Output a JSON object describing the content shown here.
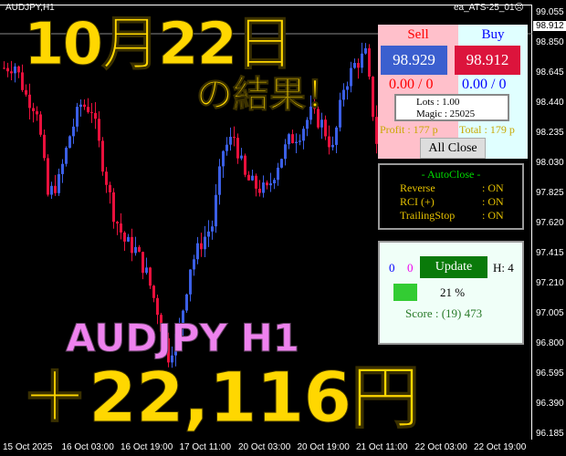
{
  "header": {
    "symbol": "AUDJPY,H1",
    "ea_name": "ea_ATS-25_01",
    "ea_status_icon": "frown-face-icon"
  },
  "price_axis": [
    "99.055",
    "98.850",
    "98.645",
    "98.440",
    "98.235",
    "98.030",
    "97.825",
    "97.620",
    "97.415",
    "97.210",
    "97.005",
    "96.800",
    "96.595",
    "96.390",
    "96.185"
  ],
  "current_price": "98.912",
  "time_axis": [
    "15 Oct 2025",
    "16 Oct 03:00",
    "16 Oct 19:00",
    "17 Oct 11:00",
    "20 Oct 03:00",
    "20 Oct 19:00",
    "21 Oct 11:00",
    "22 Oct 03:00",
    "22 Oct 19:00"
  ],
  "chart_data": {
    "type": "candlestick",
    "symbol": "AUDJPY",
    "timeframe": "H1",
    "ylim": [
      96.185,
      99.055
    ],
    "close_path": [
      98.68,
      98.7,
      98.49,
      98.4,
      97.81,
      97.91,
      98.22,
      98.43,
      98.4,
      98.03,
      97.69,
      97.5,
      97.44,
      97.28,
      97.03,
      96.72,
      96.9,
      97.33,
      97.49,
      97.61,
      98.12,
      98.21,
      97.93,
      97.87,
      97.84,
      98.03,
      98.18,
      98.24,
      98.37,
      98.3,
      98.12,
      98.55,
      98.7,
      98.77,
      98.18
    ],
    "up_color": "#3b5fe6",
    "down_color": "#e8103c"
  },
  "overlay": {
    "date": "10月22日",
    "result": "の結果！",
    "pair": "AUDJPY H1",
    "profit": "＋22,116円"
  },
  "panel": {
    "sell_label": "Sell",
    "buy_label": "Buy",
    "sell_price": "98.929",
    "buy_price": "98.912",
    "sell_position": "0.00 / 0",
    "buy_position": "0.00 / 0",
    "profit_label": "Profit : 177 p",
    "total_label": "Total : 179 p",
    "lots": "Lots    : 1.00",
    "magic": "Magic : 25025",
    "all_close": "All Close",
    "autoclose_title": "- AutoClose -",
    "autoclose_items": [
      {
        "name": "Reverse",
        "value": ": ON"
      },
      {
        "name": "RCI (+)",
        "value": ": ON"
      },
      {
        "name": "TrailingStop",
        "value": ": ON"
      }
    ],
    "count_blue": "0",
    "count_magenta": "0",
    "update": "Update",
    "h_label": "H: 4",
    "percent": "21 %",
    "score": "Score : (19) 473",
    "colors": {
      "sell_btn": "#3b5fcf",
      "buy_btn": "#dc143c",
      "update_btn": "#0a7a0a",
      "progress": "#33cc33"
    }
  }
}
